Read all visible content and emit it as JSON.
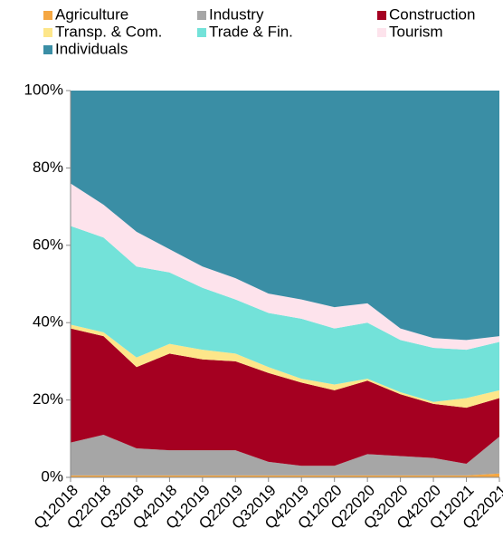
{
  "chart_data": {
    "type": "stacked_area",
    "categories": [
      "Q12018",
      "Q22018",
      "Q32018",
      "Q42018",
      "Q12019",
      "Q22019",
      "Q32019",
      "Q42019",
      "Q12020",
      "Q22020",
      "Q32020",
      "Q42020",
      "Q12021",
      "Q22021"
    ],
    "series": [
      {
        "name": "Agriculture",
        "color": "#f5a742",
        "values": [
          0.5,
          0.5,
          0.5,
          0.5,
          0.5,
          0.5,
          0.5,
          0.5,
          0.5,
          0.5,
          0.5,
          0.5,
          0.5,
          1
        ]
      },
      {
        "name": "Industry",
        "color": "#a6a6a6",
        "values": [
          8.5,
          10.5,
          7,
          6.5,
          6.5,
          6.5,
          3.5,
          2.5,
          2.5,
          5.5,
          5,
          4.5,
          3,
          9.5
        ]
      },
      {
        "name": "Construction",
        "color": "#a50021",
        "values": [
          29.5,
          25.5,
          21,
          25,
          23.5,
          23,
          23,
          21.5,
          19.5,
          19,
          16,
          14,
          14.5,
          10
        ]
      },
      {
        "name": "Transp. & Com.",
        "color": "#fde68a",
        "values": [
          1,
          1,
          2.5,
          2.5,
          2.5,
          2,
          1.5,
          1,
          1.5,
          0.5,
          0.5,
          0.5,
          2.5,
          2
        ]
      },
      {
        "name": "Trade & Fin.",
        "color": "#73e2d9",
        "values": [
          25.5,
          24.5,
          23.5,
          18.5,
          16,
          14,
          14,
          15.5,
          14.5,
          14.5,
          13.5,
          14,
          12.5,
          12.5
        ]
      },
      {
        "name": "Tourism",
        "color": "#fde3ec",
        "values": [
          11,
          8.5,
          9,
          6,
          5.5,
          5.5,
          5,
          5,
          5.5,
          5,
          3,
          2.5,
          2.5,
          1.5
        ]
      },
      {
        "name": "Individuals",
        "color": "#3a8ea5",
        "values": [
          24,
          29.5,
          36.5,
          41,
          45.5,
          48.5,
          52.5,
          54,
          56,
          55,
          61.5,
          64,
          64.5,
          63.5
        ]
      }
    ],
    "ylim": [
      0,
      100
    ],
    "yticks": [
      {
        "value": 0,
        "label": "0%"
      },
      {
        "value": 20,
        "label": "20%"
      },
      {
        "value": 40,
        "label": "40%"
      },
      {
        "value": 60,
        "label": "60%"
      },
      {
        "value": 80,
        "label": "80%"
      },
      {
        "value": 100,
        "label": "100%"
      }
    ]
  }
}
